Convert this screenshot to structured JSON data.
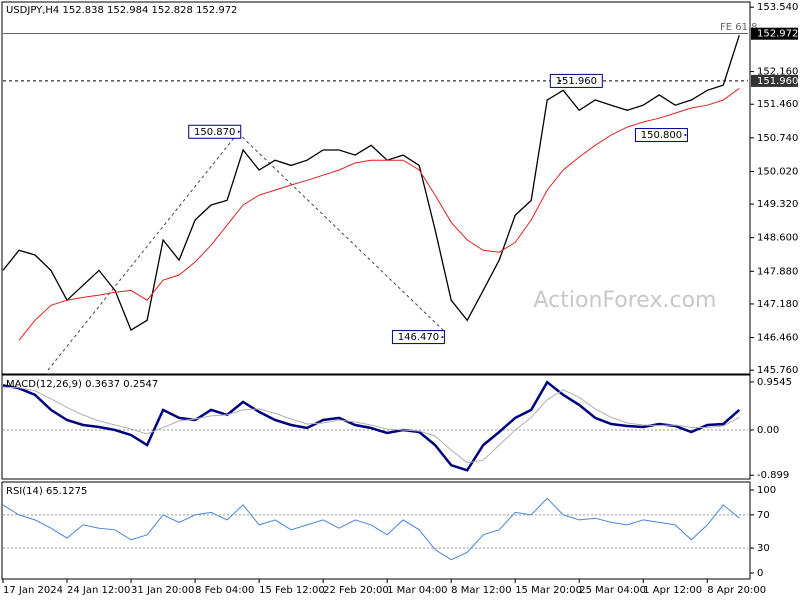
{
  "chart_data": [
    {
      "type": "line",
      "title": "USDJPY,H4  152.838 152.984 152.828 152.972",
      "x": [
        0,
        11,
        22,
        33,
        44,
        55,
        66,
        77,
        88,
        99,
        110,
        121,
        132,
        143,
        154,
        165,
        176,
        187,
        198,
        209,
        220,
        231,
        242,
        253,
        264,
        275,
        286,
        297,
        308,
        319,
        330,
        341,
        352,
        363,
        374,
        385,
        396,
        407,
        418,
        429,
        440,
        451,
        462,
        473,
        484,
        495,
        506
      ],
      "xlim": [
        0,
        512
      ],
      "ylim": [
        145.7,
        153.63
      ],
      "yticks": [
        {
          "value": 153.54,
          "label": "153.540"
        },
        {
          "value": 152.16,
          "label": "152.160"
        },
        {
          "value": 151.46,
          "label": "151.460"
        },
        {
          "value": 150.74,
          "label": "150.740"
        },
        {
          "value": 150.02,
          "label": "150.020"
        },
        {
          "value": 149.32,
          "label": "149.320"
        },
        {
          "value": 148.6,
          "label": "148.600"
        },
        {
          "value": 147.88,
          "label": "147.880"
        },
        {
          "value": 147.18,
          "label": "147.180"
        },
        {
          "value": 146.46,
          "label": "146.460"
        },
        {
          "value": 145.76,
          "label": "145.760"
        }
      ],
      "series": [
        {
          "color": "#000000",
          "values": [
            147.9,
            148.33,
            148.23,
            147.9,
            147.26,
            147.58,
            147.9,
            147.47,
            146.62,
            146.83,
            148.55,
            148.12,
            148.98,
            149.3,
            149.4,
            150.48,
            150.05,
            150.26,
            150.15,
            150.26,
            150.48,
            150.48,
            150.37,
            150.58,
            150.26,
            150.37,
            150.15,
            148.76,
            147.26,
            146.83,
            147.47,
            148.12,
            149.08,
            149.4,
            151.55,
            151.76,
            151.33,
            151.55,
            151.44,
            151.33,
            151.44,
            151.66,
            151.44,
            151.55,
            151.76,
            151.87,
            152.94
          ]
        },
        {
          "color": "#e02020",
          "values": [
            null,
            146.4,
            146.83,
            147.15,
            147.26,
            147.32,
            147.37,
            147.43,
            147.47,
            147.26,
            147.69,
            147.8,
            148.08,
            148.44,
            148.87,
            149.3,
            149.51,
            149.62,
            149.73,
            149.83,
            149.94,
            150.05,
            150.2,
            150.26,
            150.26,
            150.26,
            150.05,
            149.51,
            148.93,
            148.55,
            148.33,
            148.29,
            148.5,
            148.98,
            149.62,
            150.05,
            150.33,
            150.58,
            150.8,
            150.97,
            151.08,
            151.16,
            151.27,
            151.38,
            151.44,
            151.55,
            151.8
          ]
        }
      ],
      "reference_lines": [
        {
          "value": 152.972,
          "label": "152.972"
        },
        {
          "value": 151.96,
          "label": "151.960"
        }
      ],
      "annotations": [
        {
          "x": 162,
          "value": 150.87,
          "label": "150.870"
        },
        {
          "x": 302,
          "value": 146.47,
          "label": "146.470"
        },
        {
          "x": 383,
          "value": 151.96,
          "label": "151.960"
        },
        {
          "x": 469,
          "value": 150.8,
          "label": "150.800"
        }
      ],
      "fib_label": "FE 61.8",
      "watermark": "ActionForex.com"
    },
    {
      "type": "line",
      "title": "MACD(12,26,9) 0.3637 0.2547",
      "x": [
        0,
        11,
        22,
        33,
        44,
        55,
        66,
        77,
        88,
        99,
        110,
        121,
        132,
        143,
        154,
        165,
        176,
        187,
        198,
        209,
        220,
        231,
        242,
        253,
        264,
        275,
        286,
        297,
        308,
        319,
        330,
        341,
        352,
        363,
        374,
        385,
        396,
        407,
        418,
        429,
        440,
        451,
        462,
        473,
        484,
        495,
        506
      ],
      "xlim": [
        0,
        512
      ],
      "ylim": [
        -0.954,
        1.074
      ],
      "yticks": [
        0.9545,
        {
          "value": 0,
          "label": "0.00"
        },
        -0.899
      ],
      "dotted_levels": [
        0
      ],
      "series": [
        {
          "color": "#000080",
          "values": [
            0.89,
            0.83,
            0.7,
            0.4,
            0.2,
            0.1,
            0.06,
            0,
            -0.1,
            -0.3,
            0.4,
            0.24,
            0.2,
            0.4,
            0.3,
            0.56,
            0.36,
            0.2,
            0.1,
            0.04,
            0.2,
            0.24,
            0.1,
            0.04,
            -0.06,
            0,
            -0.04,
            -0.3,
            -0.7,
            -0.8,
            -0.3,
            -0.04,
            0.24,
            0.4,
            0.95,
            0.7,
            0.5,
            0.24,
            0.12,
            0.08,
            0.06,
            0.12,
            0.08,
            -0.04,
            0.1,
            0.12,
            0.4
          ]
        },
        {
          "color": "#b0b0b0",
          "values": [
            0.85,
            0.84,
            0.78,
            0.62,
            0.45,
            0.3,
            0.18,
            0.1,
            0.02,
            -0.08,
            0.05,
            0.18,
            0.22,
            0.28,
            0.3,
            0.4,
            0.42,
            0.33,
            0.22,
            0.12,
            0.14,
            0.2,
            0.16,
            0.1,
            0.02,
            0,
            -0.02,
            -0.12,
            -0.4,
            -0.65,
            -0.6,
            -0.3,
            0,
            0.25,
            0.6,
            0.8,
            0.65,
            0.42,
            0.25,
            0.14,
            0.1,
            0.09,
            0.1,
            0.05,
            0.05,
            0.08,
            0.25
          ]
        }
      ]
    },
    {
      "type": "line",
      "title": "RSI(14) 65.1275",
      "x": [
        0,
        11,
        22,
        33,
        44,
        55,
        66,
        77,
        88,
        99,
        110,
        121,
        132,
        143,
        154,
        165,
        176,
        187,
        198,
        209,
        220,
        231,
        242,
        253,
        264,
        275,
        286,
        297,
        308,
        319,
        330,
        341,
        352,
        363,
        374,
        385,
        396,
        407,
        418,
        429,
        440,
        451,
        462,
        473,
        484,
        495,
        506
      ],
      "xlim": [
        0,
        512
      ],
      "ylim": [
        -6,
        108.4
      ],
      "yticks": [
        100,
        70,
        30,
        0
      ],
      "dotted_levels": [
        30,
        70
      ],
      "xticks": [
        {
          "value": 0,
          "label": "17 Jan 2024"
        },
        {
          "value": 44,
          "label": "24 Jan 12:00"
        },
        {
          "value": 88,
          "label": "31 Jan 20:00"
        },
        {
          "value": 132,
          "label": "8 Feb 04:00"
        },
        {
          "value": 176,
          "label": "15 Feb 12:00"
        },
        {
          "value": 220,
          "label": "22 Feb 20:00"
        },
        {
          "value": 264,
          "label": "1 Mar 04:00"
        },
        {
          "value": 308,
          "label": "8 Mar 12:00"
        },
        {
          "value": 352,
          "label": "15 Mar 20:00"
        },
        {
          "value": 396,
          "label": "25 Mar 04:00"
        },
        {
          "value": 440,
          "label": "1 Apr 12:00"
        },
        {
          "value": 484,
          "label": "8 Apr 20:00"
        }
      ],
      "series": [
        {
          "color": "#4a86d6",
          "values": [
            82,
            70,
            64,
            54,
            42,
            58,
            54,
            52,
            40,
            46,
            70,
            61,
            70,
            73,
            64,
            82,
            58,
            64,
            52,
            58,
            64,
            54,
            64,
            58,
            46,
            64,
            52,
            28,
            16,
            25,
            46,
            52,
            73,
            70,
            90,
            70,
            64,
            66,
            61,
            58,
            64,
            61,
            58,
            40,
            58,
            82,
            66
          ]
        }
      ]
    }
  ]
}
